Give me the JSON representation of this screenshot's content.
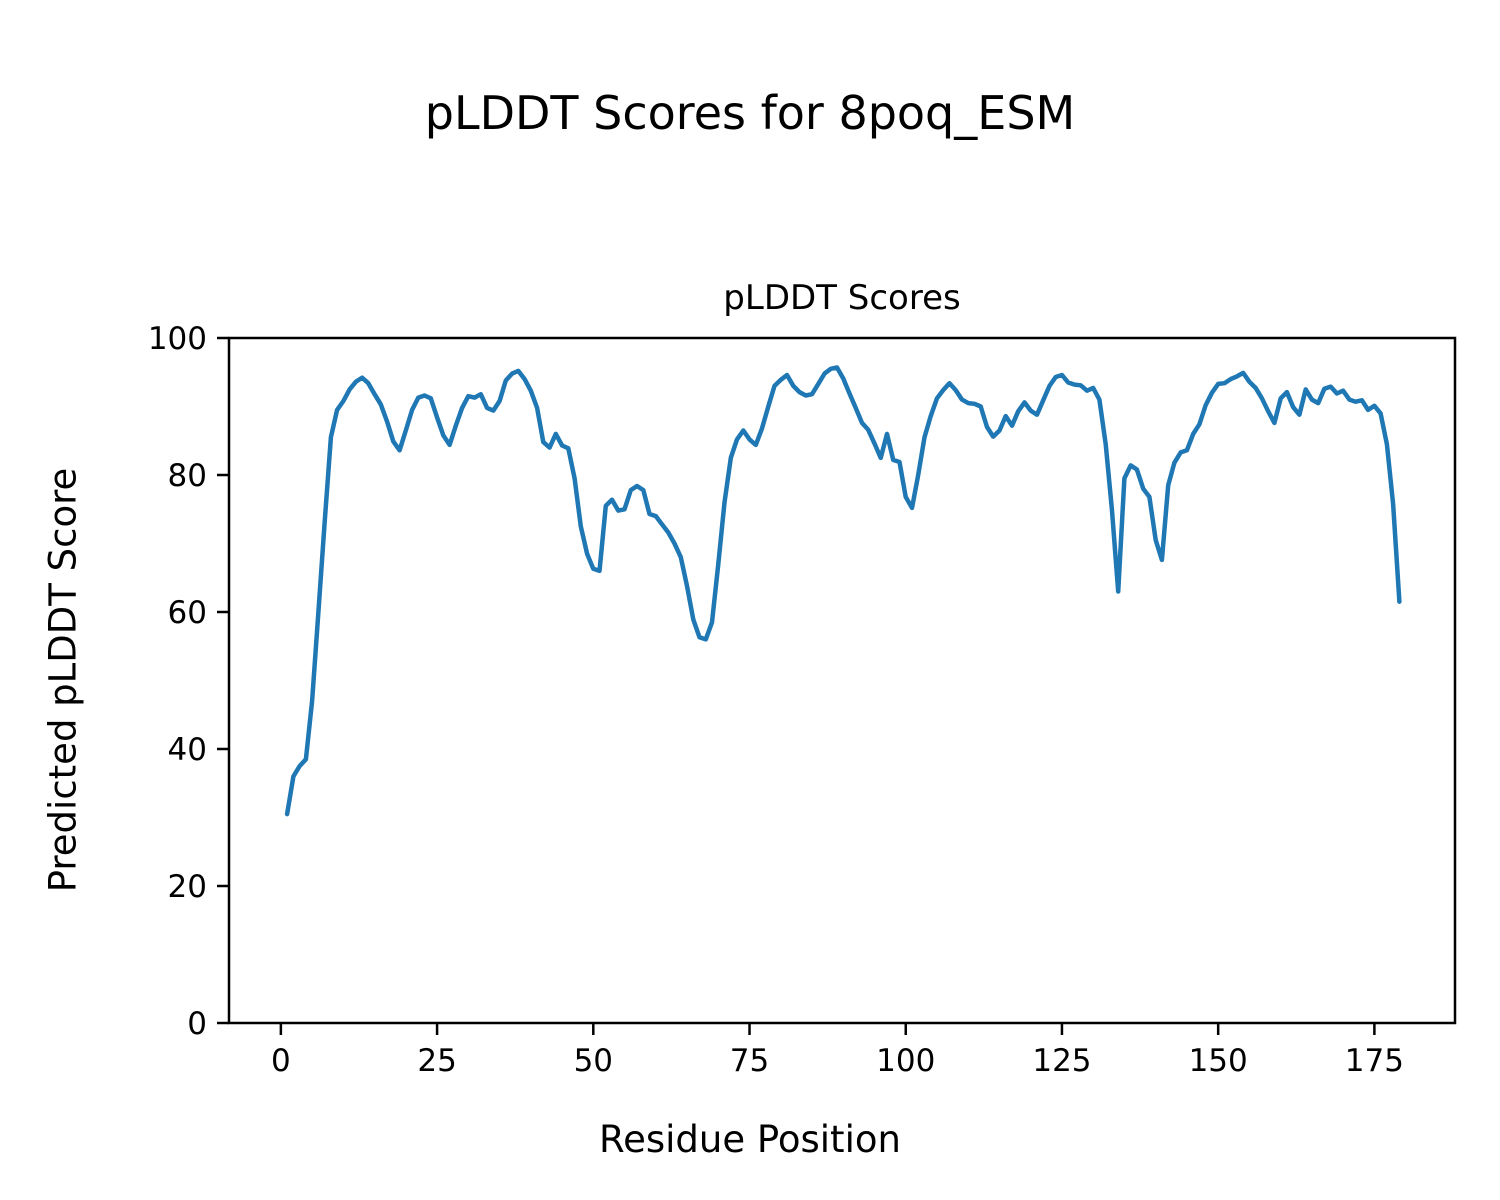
{
  "chart_data": {
    "type": "line",
    "title": "pLDDT Scores for 8poq_ESM",
    "axes_title": "pLDDT Scores",
    "xlabel": "Residue Position",
    "ylabel": "Predicted pLDDT Score",
    "xlim": [
      -8.3,
      187.9
    ],
    "ylim": [
      0,
      100
    ],
    "xticks": [
      0,
      25,
      50,
      75,
      100,
      125,
      150,
      175
    ],
    "yticks": [
      0,
      20,
      40,
      60,
      80,
      100
    ],
    "grid": false,
    "legend_position": "none",
    "line_color": "#1f77b4",
    "spine_color": "#000000",
    "background_color": "#ffffff",
    "series": [
      {
        "name": "pLDDT",
        "x_start": 1,
        "x_step": 1,
        "values": [
          30.5,
          36.0,
          37.5,
          38.5,
          47.0,
          60.0,
          73.0,
          85.5,
          89.5,
          90.8,
          92.5,
          93.6,
          94.2,
          93.4,
          91.8,
          90.3,
          87.8,
          84.9,
          83.6,
          86.5,
          89.5,
          91.3,
          91.6,
          91.2,
          88.4,
          85.8,
          84.4,
          87.2,
          89.8,
          91.5,
          91.3,
          91.8,
          89.8,
          89.4,
          90.8,
          93.8,
          94.8,
          95.2,
          94.0,
          92.3,
          89.8,
          84.8,
          84.0,
          86.0,
          84.3,
          83.9,
          79.5,
          72.5,
          68.5,
          66.3,
          66.0,
          75.5,
          76.4,
          74.8,
          75.0,
          77.8,
          78.4,
          77.8,
          74.3,
          74.0,
          72.8,
          71.6,
          70.0,
          68.0,
          63.8,
          58.9,
          56.3,
          56.0,
          58.5,
          67.0,
          76.0,
          82.5,
          85.2,
          86.5,
          85.2,
          84.4,
          86.8,
          90.0,
          93.0,
          93.9,
          94.6,
          93.0,
          92.1,
          91.6,
          91.8,
          93.3,
          94.8,
          95.5,
          95.7,
          94.1,
          91.9,
          89.8,
          87.6,
          86.6,
          84.6,
          82.5,
          86.0,
          82.2,
          81.9,
          76.8,
          75.2,
          80.0,
          85.5,
          88.6,
          91.2,
          92.4,
          93.4,
          92.4,
          91.0,
          90.5,
          90.4,
          90.0,
          87.0,
          85.6,
          86.5,
          88.6,
          87.2,
          89.3,
          90.6,
          89.4,
          88.8,
          90.9,
          93.0,
          94.3,
          94.6,
          93.5,
          93.2,
          93.1,
          92.3,
          92.7,
          91.0,
          84.5,
          75.0,
          63.0,
          79.5,
          81.4,
          80.8,
          78.0,
          76.8,
          70.5,
          67.6,
          78.5,
          81.8,
          83.3,
          83.6,
          86.0,
          87.4,
          90.2,
          92.0,
          93.3,
          93.4,
          94.0,
          94.4,
          94.9,
          93.6,
          92.7,
          91.2,
          89.3,
          87.6,
          91.2,
          92.1,
          89.9,
          88.8,
          92.5,
          91.0,
          90.5,
          92.6,
          92.9,
          91.9,
          92.3,
          91.0,
          90.7,
          90.9,
          89.5,
          90.1,
          89.0,
          84.5,
          75.8,
          61.5
        ]
      }
    ]
  }
}
